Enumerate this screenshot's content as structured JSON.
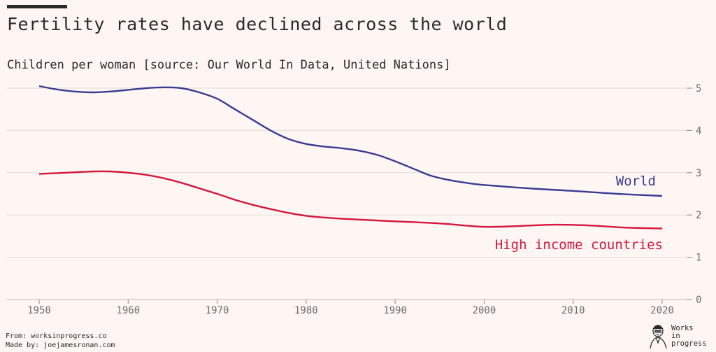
{
  "header": {
    "title": "Fertility rates have declined across the world",
    "subtitle": "Children per woman [source: Our World In Data, United Nations]"
  },
  "chart_data": {
    "type": "line",
    "title": "Fertility rates have declined across the world",
    "ylabel": "Children per woman",
    "xlim": [
      1950,
      2020
    ],
    "ylim": [
      0,
      5
    ],
    "x_ticks": [
      1950,
      1960,
      1970,
      1980,
      1990,
      2000,
      2010,
      2020
    ],
    "y_ticks": [
      0,
      1,
      2,
      3,
      4,
      5
    ],
    "grid": true,
    "y_axis_side": "right",
    "series": [
      {
        "name": "World",
        "color": "#3b3b94",
        "x": [
          1950,
          1952,
          1954,
          1956,
          1958,
          1960,
          1962,
          1964,
          1966,
          1968,
          1970,
          1972,
          1974,
          1976,
          1978,
          1980,
          1982,
          1984,
          1986,
          1988,
          1990,
          1992,
          1994,
          1996,
          1998,
          2000,
          2005,
          2010,
          2015,
          2020
        ],
        "values": [
          5.05,
          4.97,
          4.92,
          4.9,
          4.92,
          4.96,
          5.0,
          5.02,
          5.0,
          4.9,
          4.75,
          4.5,
          4.25,
          4.0,
          3.8,
          3.68,
          3.62,
          3.58,
          3.52,
          3.42,
          3.27,
          3.1,
          2.93,
          2.83,
          2.76,
          2.71,
          2.63,
          2.57,
          2.5,
          2.45
        ]
      },
      {
        "name": "High income countries",
        "color": "#d6163f",
        "x": [
          1950,
          1952,
          1954,
          1956,
          1958,
          1960,
          1962,
          1964,
          1966,
          1968,
          1970,
          1972,
          1974,
          1976,
          1978,
          1980,
          1982,
          1985,
          1990,
          1995,
          2000,
          2004,
          2008,
          2012,
          2016,
          2020
        ],
        "values": [
          2.97,
          2.99,
          3.01,
          3.03,
          3.03,
          3.0,
          2.95,
          2.87,
          2.76,
          2.63,
          2.5,
          2.36,
          2.24,
          2.14,
          2.05,
          1.98,
          1.94,
          1.9,
          1.85,
          1.8,
          1.72,
          1.74,
          1.77,
          1.75,
          1.7,
          1.68
        ]
      }
    ],
    "annotations": [
      {
        "text": "World",
        "series": "World"
      },
      {
        "text": "High income countries",
        "series": "High income countries"
      }
    ]
  },
  "footer": {
    "from": "From: worksinprogress.co",
    "made_by": "Made by: joejamesronan.com"
  },
  "logo": {
    "line1": "Works",
    "line2": "in",
    "line3": "progress"
  }
}
